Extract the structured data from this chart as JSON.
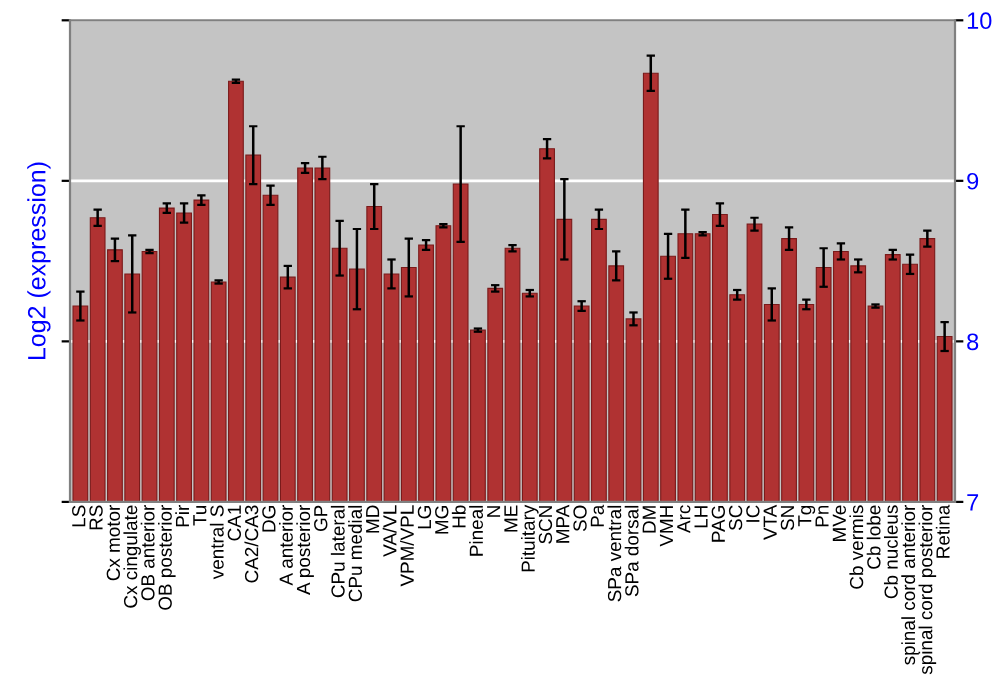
{
  "chart_data": {
    "type": "bar",
    "ylabel": "Log2 (expression)",
    "categories": [
      "LS",
      "RS",
      "Cx motor",
      "Cx cingulate",
      "OB anterior",
      "OB posterior",
      "Pir",
      "Tu",
      "ventral S",
      "CA1",
      "CA2/CA3",
      "DG",
      "A anterior",
      "A posterior",
      "GP",
      "CPu lateral",
      "CPu medial",
      "MD",
      "VA/VL",
      "VPM/VPL",
      "LG",
      "MG",
      "Hb",
      "Pineal",
      "N",
      "ME",
      "Pituitary",
      "SCN",
      "MPA",
      "SO",
      "Pa",
      "SPa ventral",
      "SPa dorsal",
      "DM",
      "VMH",
      "Arc",
      "LH",
      "PAG",
      "SC",
      "IC",
      "VTA",
      "SN",
      "Tg",
      "Pn",
      "MVe",
      "Cb vermis",
      "Cb lobe",
      "Cb nucleus",
      "spinal cord anterior",
      "spinal cord posterior",
      "Retina"
    ],
    "series": [
      {
        "color": "#b03232",
        "values": [
          8.22,
          8.77,
          8.57,
          8.42,
          8.56,
          8.83,
          8.8,
          8.88,
          8.37,
          9.62,
          9.16,
          8.91,
          8.4,
          9.08,
          9.08,
          8.58,
          8.45,
          8.84,
          8.42,
          8.46,
          8.6,
          8.72,
          8.98,
          8.07,
          8.33,
          8.58,
          8.3,
          9.2,
          8.76,
          8.22,
          8.76,
          8.47,
          8.14,
          9.67,
          8.53,
          8.67,
          8.67,
          8.79,
          8.29,
          8.73,
          8.23,
          8.64,
          8.23,
          8.46,
          8.56,
          8.47,
          8.22,
          8.54,
          8.48,
          8.64,
          8.03
        ],
        "errors": [
          0.09,
          0.05,
          0.07,
          0.24,
          0.01,
          0.03,
          0.06,
          0.03,
          0.01,
          0.01,
          0.18,
          0.06,
          0.07,
          0.03,
          0.07,
          0.17,
          0.25,
          0.14,
          0.09,
          0.18,
          0.03,
          0.01,
          0.36,
          0.01,
          0.02,
          0.02,
          0.02,
          0.06,
          0.25,
          0.03,
          0.06,
          0.09,
          0.04,
          0.11,
          0.14,
          0.15,
          0.01,
          0.07,
          0.03,
          0.04,
          0.1,
          0.07,
          0.03,
          0.12,
          0.05,
          0.04,
          0.01,
          0.03,
          0.06,
          0.05,
          0.09
        ]
      }
    ],
    "ylim": [
      7,
      10
    ],
    "yticks": [
      7,
      8,
      9,
      10
    ],
    "grid": "y"
  }
}
